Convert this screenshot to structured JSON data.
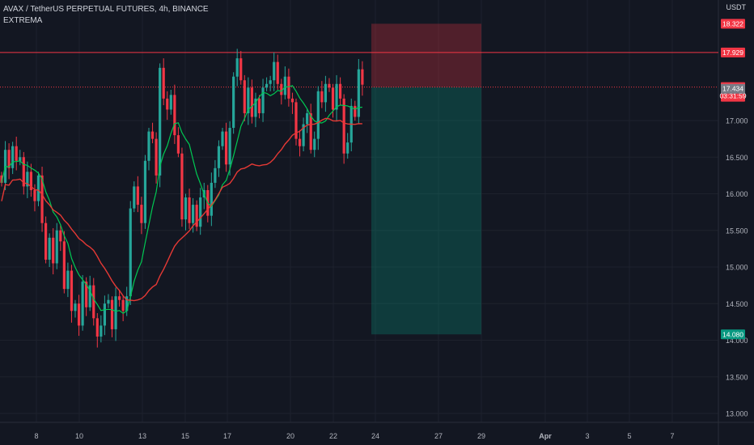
{
  "header": {
    "symbol_line": "AVAX / TetherUS PERPETUAL FUTURES, 4h, BINANCE",
    "indicator": "EXTREMA"
  },
  "price_axis": {
    "currency": "USDT",
    "ticks": [
      "17.000",
      "16.500",
      "16.000",
      "15.500",
      "15.000",
      "14.500",
      "14.000",
      "13.500",
      "13.000"
    ],
    "labels": [
      {
        "name": "stop-loss",
        "price": 18.322,
        "text": "18.322",
        "bg": "#f23645"
      },
      {
        "name": "horizontal-line",
        "price": 17.929,
        "text": "17.929",
        "bg": "#f23645"
      },
      {
        "name": "last-price",
        "price": 17.457,
        "text": "17.457",
        "sub": "03:31:59",
        "bg": "#f23645"
      },
      {
        "name": "ma-value",
        "price": 17.434,
        "text": "17.434",
        "bg": "#787b86"
      },
      {
        "name": "take-profit",
        "price": 14.08,
        "text": "14.080",
        "bg": "#089981"
      }
    ]
  },
  "time_axis": {
    "ticks": [
      {
        "label": "8",
        "bold": false
      },
      {
        "label": "10",
        "bold": false
      },
      {
        "label": "13",
        "bold": false
      },
      {
        "label": "15",
        "bold": false
      },
      {
        "label": "17",
        "bold": false
      },
      {
        "label": "20",
        "bold": false
      },
      {
        "label": "22",
        "bold": false
      },
      {
        "label": "24",
        "bold": false
      },
      {
        "label": "27",
        "bold": false
      },
      {
        "label": "29",
        "bold": false
      },
      {
        "label": "Apr",
        "bold": true
      },
      {
        "label": "3",
        "bold": false
      },
      {
        "label": "5",
        "bold": false
      },
      {
        "label": "7",
        "bold": false
      }
    ]
  },
  "position": {
    "entry": 17.457,
    "stop": 18.322,
    "target": 14.08
  },
  "colors": {
    "up": "#26a69a",
    "down": "#f23645",
    "ma_fast": "#00c853",
    "ma_slow": "#e53935",
    "bg": "#131722",
    "grid": "#1e222d"
  }
}
